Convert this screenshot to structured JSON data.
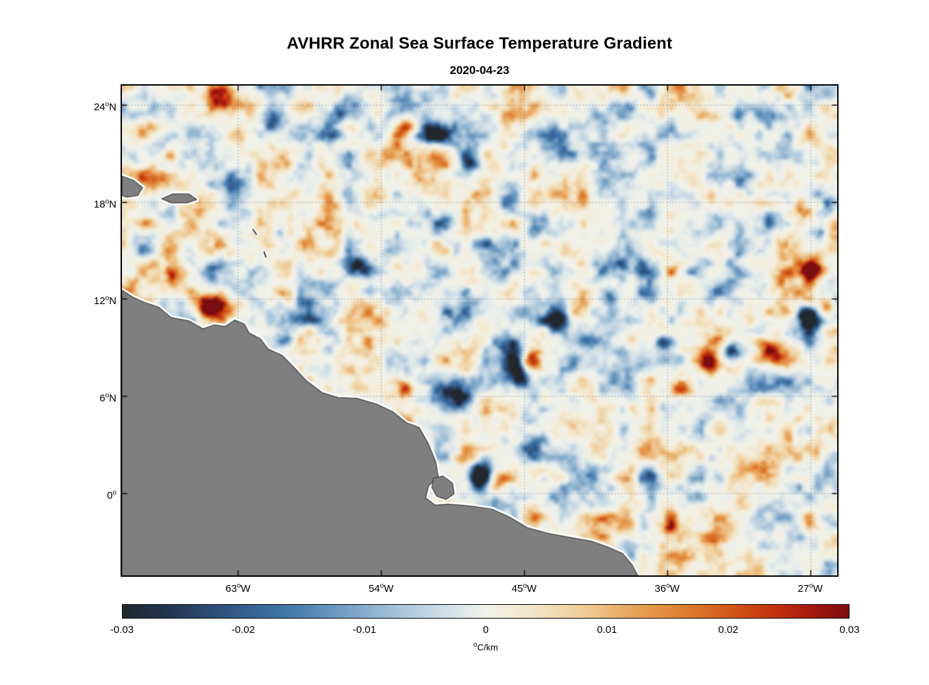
{
  "deg": "o",
  "title": "AVHRR Zonal Sea Surface Temperature Gradient",
  "subtitle": "2020-04-23",
  "chart_data": {
    "type": "heatmap",
    "title": "AVHRR Zonal Sea Surface Temperature Gradient",
    "subtitle": "2020-04-23",
    "x_axis": {
      "range": [
        -70.3,
        -25.3
      ],
      "tick_values": [
        -63,
        -54,
        -45,
        -36,
        -27
      ],
      "ticks": [
        {
          "value": "63",
          "suffix": "W"
        },
        {
          "value": "54",
          "suffix": "W"
        },
        {
          "value": "45",
          "suffix": "W"
        },
        {
          "value": "36",
          "suffix": "W"
        },
        {
          "value": "27",
          "suffix": "W"
        }
      ]
    },
    "y_axis": {
      "range": [
        -5.1,
        25.2
      ],
      "tick_values": [
        24,
        18,
        12,
        6,
        0
      ],
      "ticks": [
        {
          "value": "24",
          "suffix": "N"
        },
        {
          "value": "18",
          "suffix": "N"
        },
        {
          "value": "12",
          "suffix": "N"
        },
        {
          "value": "6",
          "suffix": "N"
        },
        {
          "value": "0",
          "suffix": ""
        }
      ]
    },
    "colorbar": {
      "min": -0.03,
      "max": 0.03,
      "ticks": [
        "-0.03",
        "-0.02",
        "-0.01",
        "0",
        "0.01",
        "0.02",
        "0.03"
      ],
      "tick_values": [
        -0.03,
        -0.02,
        -0.01,
        0,
        0.01,
        0.02,
        0.03
      ],
      "label": "C/km",
      "colormap": [
        [
          0.0,
          "#23272e"
        ],
        [
          0.06,
          "#24344f"
        ],
        [
          0.14,
          "#2f5480"
        ],
        [
          0.22,
          "#3f74a6"
        ],
        [
          0.3,
          "#6f9cc3"
        ],
        [
          0.38,
          "#a7c4da"
        ],
        [
          0.44,
          "#cfdde6"
        ],
        [
          0.48,
          "#e6ece9"
        ],
        [
          0.5,
          "#f0f1ea"
        ],
        [
          0.53,
          "#f3eedd"
        ],
        [
          0.57,
          "#f2e3c4"
        ],
        [
          0.63,
          "#f0cf9e"
        ],
        [
          0.7,
          "#e8a55c"
        ],
        [
          0.78,
          "#dd7a2c"
        ],
        [
          0.85,
          "#d14f16"
        ],
        [
          0.91,
          "#bd2a0e"
        ],
        [
          0.96,
          "#9c150f"
        ],
        [
          1.0,
          "#7c0d10"
        ]
      ]
    },
    "grid": {
      "color": "rgba(30,55,110,0.5)",
      "style": "dotted"
    },
    "land": {
      "fill": "#7f7f7f",
      "edge": "#3f3f3f",
      "halo": "#ffffff",
      "polygons": [
        [
          [
            -70.3,
            12.55
          ],
          [
            -69.6,
            12.1
          ],
          [
            -68.9,
            11.8
          ],
          [
            -68.0,
            11.5
          ],
          [
            -67.2,
            10.85
          ],
          [
            -66.1,
            10.65
          ],
          [
            -65.2,
            10.15
          ],
          [
            -64.5,
            10.4
          ],
          [
            -63.8,
            10.3
          ],
          [
            -63.2,
            10.7
          ],
          [
            -62.6,
            10.45
          ],
          [
            -62.3,
            9.9
          ],
          [
            -61.6,
            9.55
          ],
          [
            -61.1,
            8.9
          ],
          [
            -60.2,
            8.5
          ],
          [
            -59.7,
            8.0
          ],
          [
            -58.7,
            6.95
          ],
          [
            -57.7,
            6.2
          ],
          [
            -56.7,
            5.9
          ],
          [
            -55.5,
            5.85
          ],
          [
            -54.3,
            5.5
          ],
          [
            -53.3,
            5.05
          ],
          [
            -52.4,
            4.35
          ],
          [
            -51.6,
            4.05
          ],
          [
            -51.0,
            3.0
          ],
          [
            -50.55,
            1.9
          ],
          [
            -50.4,
            1.0
          ],
          [
            -51.0,
            0.45
          ],
          [
            -51.2,
            -0.3
          ],
          [
            -50.6,
            -0.75
          ],
          [
            -49.8,
            -0.7
          ],
          [
            -49.0,
            -0.75
          ],
          [
            -48.1,
            -0.85
          ],
          [
            -47.0,
            -1.0
          ],
          [
            -45.9,
            -1.5
          ],
          [
            -44.8,
            -2.15
          ],
          [
            -43.5,
            -2.5
          ],
          [
            -42.1,
            -2.75
          ],
          [
            -40.7,
            -3.0
          ],
          [
            -39.7,
            -3.35
          ],
          [
            -38.8,
            -3.75
          ],
          [
            -38.2,
            -4.45
          ],
          [
            -37.8,
            -5.2
          ],
          [
            -70.3,
            -5.2
          ]
        ],
        [
          [
            -50.7,
            0.9
          ],
          [
            -50.1,
            1.05
          ],
          [
            -49.5,
            0.6
          ],
          [
            -49.4,
            -0.05
          ],
          [
            -49.9,
            -0.4
          ],
          [
            -50.5,
            -0.2
          ],
          [
            -50.8,
            0.35
          ]
        ],
        [
          [
            -70.3,
            19.6
          ],
          [
            -69.6,
            19.35
          ],
          [
            -69.0,
            18.9
          ],
          [
            -69.3,
            18.4
          ],
          [
            -70.0,
            18.3
          ],
          [
            -70.3,
            18.4
          ]
        ],
        [
          [
            -67.8,
            18.2
          ],
          [
            -67.1,
            18.5
          ],
          [
            -66.1,
            18.5
          ],
          [
            -65.6,
            18.15
          ],
          [
            -66.2,
            17.95
          ],
          [
            -67.2,
            17.95
          ]
        ]
      ],
      "minor_islands": [
        [
          [
            -62.05,
            16.3
          ],
          [
            -61.85,
            16.0
          ]
        ],
        [
          [
            -61.35,
            14.9
          ],
          [
            -61.25,
            14.6
          ]
        ]
      ]
    },
    "field": {
      "seed": 9.43,
      "octaves": [
        [
          0.055,
          0.45
        ],
        [
          0.12,
          1.0
        ],
        [
          0.28,
          0.55
        ],
        [
          0.62,
          0.22
        ]
      ],
      "contrast": 2.35,
      "gamma": 1.55,
      "features": [
        [
          -64.0,
          24.7,
          0.8,
          0.6,
          1.25
        ],
        [
          -66.0,
          22.3,
          0.5,
          0.45,
          -0.6
        ],
        [
          -67.4,
          20.9,
          0.5,
          0.4,
          0.85
        ],
        [
          -60.9,
          23.0,
          0.6,
          0.7,
          -0.75
        ],
        [
          -57.0,
          23.7,
          0.7,
          0.55,
          -0.8
        ],
        [
          -52.2,
          22.7,
          0.5,
          0.45,
          0.75
        ],
        [
          -50.6,
          22.2,
          0.8,
          0.6,
          -0.9
        ],
        [
          -48.3,
          20.6,
          0.55,
          0.8,
          -0.7
        ],
        [
          -64.6,
          11.6,
          0.9,
          0.55,
          1.35
        ],
        [
          -67.0,
          13.2,
          0.6,
          0.5,
          0.5
        ],
        [
          -58.6,
          11.0,
          0.8,
          0.5,
          -0.7
        ],
        [
          -55.4,
          13.9,
          0.45,
          0.45,
          -0.55
        ],
        [
          -52.6,
          6.4,
          0.5,
          0.4,
          0.8
        ],
        [
          -52.3,
          3.8,
          0.55,
          0.8,
          0.95
        ],
        [
          -49.0,
          5.9,
          0.6,
          0.5,
          -0.85
        ],
        [
          -46.0,
          9.4,
          0.95,
          0.5,
          -1.15
        ],
        [
          -45.4,
          7.6,
          0.5,
          0.95,
          -1.05
        ],
        [
          -44.6,
          8.1,
          0.45,
          0.5,
          0.85
        ],
        [
          -47.8,
          0.9,
          0.6,
          0.7,
          -1.05
        ],
        [
          -46.8,
          0.6,
          0.45,
          0.6,
          1.0
        ],
        [
          -43.0,
          10.6,
          0.7,
          0.5,
          -0.7
        ],
        [
          -39.6,
          12.3,
          0.55,
          0.4,
          -0.95
        ],
        [
          -36.2,
          9.3,
          0.6,
          0.5,
          -0.7
        ],
        [
          -35.2,
          6.4,
          0.5,
          0.5,
          0.85
        ],
        [
          -33.6,
          8.1,
          0.6,
          0.5,
          0.9
        ],
        [
          -31.8,
          8.7,
          0.85,
          0.5,
          -1.0
        ],
        [
          -29.6,
          8.9,
          0.7,
          0.5,
          1.05
        ],
        [
          -30.6,
          14.2,
          0.5,
          0.5,
          0.6
        ],
        [
          -27.2,
          10.9,
          0.6,
          0.5,
          -1.15
        ],
        [
          -25.9,
          11.4,
          0.4,
          0.5,
          1.15
        ],
        [
          -26.6,
          13.9,
          0.5,
          0.5,
          0.95
        ],
        [
          -26.2,
          16.4,
          0.4,
          0.5,
          -0.9
        ],
        [
          -27.4,
          17.8,
          0.5,
          0.4,
          0.8
        ]
      ]
    }
  }
}
